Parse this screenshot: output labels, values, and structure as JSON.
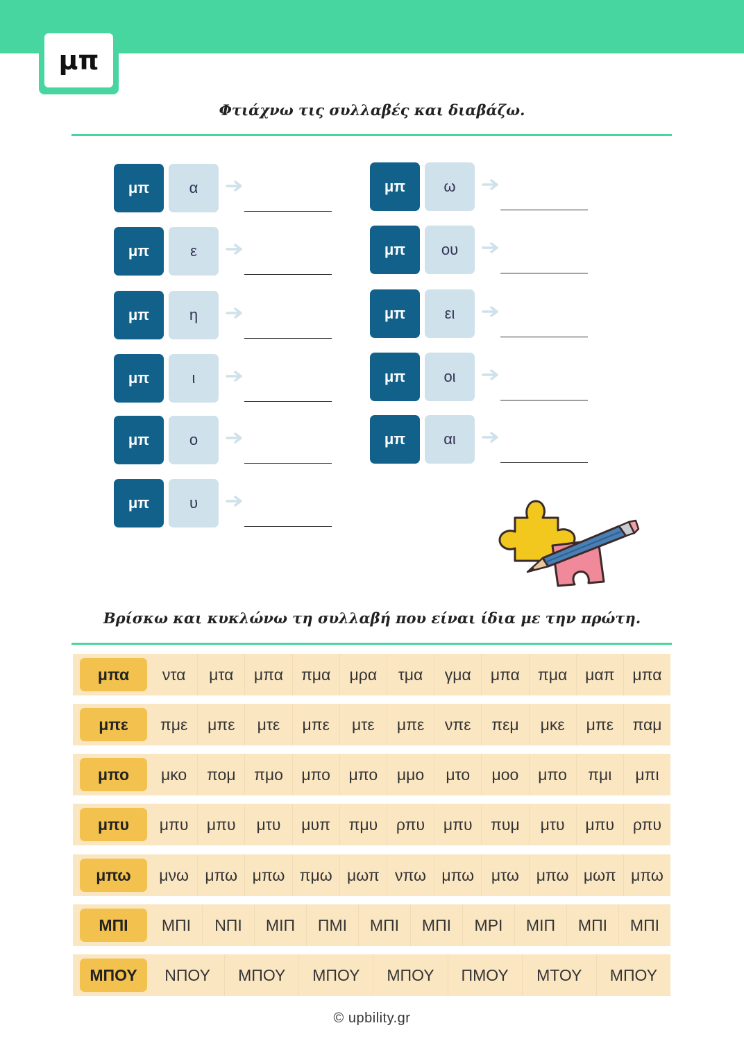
{
  "badge": "μπ",
  "section1": {
    "title": "Φτιάχνω τις συλλαβές και διαβάζω.",
    "left_column": [
      {
        "consonant": "μπ",
        "vowel": "α"
      },
      {
        "consonant": "μπ",
        "vowel": "ε"
      },
      {
        "consonant": "μπ",
        "vowel": "η"
      },
      {
        "consonant": "μπ",
        "vowel": "ι"
      },
      {
        "consonant": "μπ",
        "vowel": "ο"
      },
      {
        "consonant": "μπ",
        "vowel": "υ"
      }
    ],
    "right_column": [
      {
        "consonant": "μπ",
        "vowel": "ω"
      },
      {
        "consonant": "μπ",
        "vowel": "ου"
      },
      {
        "consonant": "μπ",
        "vowel": "ει"
      },
      {
        "consonant": "μπ",
        "vowel": "οι"
      },
      {
        "consonant": "μπ",
        "vowel": "αι"
      }
    ]
  },
  "section2": {
    "title": "Βρίσκω και κυκλώνω τη συλλαβή που είναι ίδια με την πρώτη.",
    "rows": [
      {
        "key": "μπα",
        "options": [
          "ντα",
          "μτα",
          "μπα",
          "πμα",
          "μρα",
          "τμα",
          "γμα",
          "μπα",
          "πμα",
          "μαπ",
          "μπα"
        ]
      },
      {
        "key": "μπε",
        "options": [
          "πμε",
          "μπε",
          "μτε",
          "μπε",
          "μτε",
          "μπε",
          "νπε",
          "πεμ",
          "μκε",
          "μπε",
          "παμ"
        ]
      },
      {
        "key": "μπο",
        "options": [
          "μκο",
          "πομ",
          "πμο",
          "μπο",
          "μπο",
          "μμο",
          "μτο",
          "μοο",
          "μπο",
          "πμι",
          "μπι"
        ]
      },
      {
        "key": "μπυ",
        "options": [
          "μπυ",
          "μπυ",
          "μτυ",
          "μυπ",
          "πμυ",
          "ρπυ",
          "μπυ",
          "πυμ",
          "μτυ",
          "μπυ",
          "ρπυ"
        ]
      },
      {
        "key": "μπω",
        "options": [
          "μνω",
          "μπω",
          "μπω",
          "πμω",
          "μωπ",
          "νπω",
          "μπω",
          "μτω",
          "μπω",
          "μωπ",
          "μπω"
        ]
      },
      {
        "key": "ΜΠΙ",
        "options": [
          "ΜΠΙ",
          "ΝΠΙ",
          "ΜΙΠ",
          "ΠΜΙ",
          "ΜΠΙ",
          "ΜΠΙ",
          "ΜΡΙ",
          "ΜΙΠ",
          "ΜΠΙ",
          "ΜΠΙ"
        ]
      },
      {
        "key": "ΜΠΟΥ",
        "options": [
          "ΝΠΟΥ",
          "ΜΠΟΥ",
          "ΜΠΟΥ",
          "ΜΠΟΥ",
          "ΠΜΟΥ",
          "ΜΤΟΥ",
          "ΜΠΟΥ"
        ]
      }
    ]
  },
  "footer": "© upbility.gr",
  "colors": {
    "accent": "#47d6a0",
    "tile_dark": "#11618a",
    "tile_light": "#cfe1ea",
    "row_bg": "#fbe6c2",
    "key_bg": "#f2c14e"
  }
}
